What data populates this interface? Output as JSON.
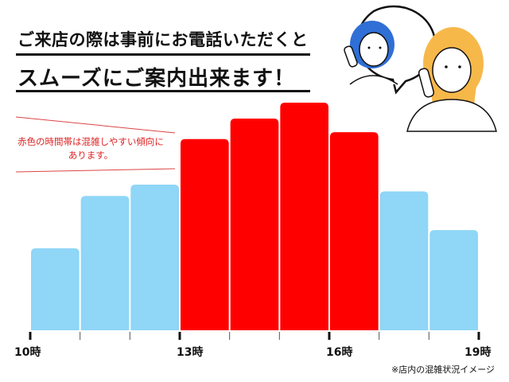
{
  "header": {
    "line1": "ご来店の際は事前にお電話いただくと",
    "line2": "スムーズにご案内出来ます！"
  },
  "note": {
    "line1": "赤色の時間帯は混雑しやすい傾向に",
    "line2": "あります。"
  },
  "footnote": "※店内の混雑状況イメージ",
  "illustration": "two women talking on phones (speech bubble)",
  "chart_data": {
    "type": "bar",
    "title": "",
    "xlabel": "",
    "ylabel": "",
    "x_range": [
      10,
      19
    ],
    "tick_labels": [
      {
        "hour": 10,
        "label": "10時"
      },
      {
        "hour": 13,
        "label": "13時"
      },
      {
        "hour": 16,
        "label": "16時"
      },
      {
        "hour": 19,
        "label": "19時"
      }
    ],
    "minor_ticks": [
      11,
      12,
      14,
      15,
      17,
      18
    ],
    "bars": [
      {
        "start": 10,
        "value": 36,
        "busy": false
      },
      {
        "start": 11,
        "value": 59,
        "busy": false
      },
      {
        "start": 12,
        "value": 64,
        "busy": false
      },
      {
        "start": 13,
        "value": 84,
        "busy": true
      },
      {
        "start": 14,
        "value": 93,
        "busy": true
      },
      {
        "start": 15,
        "value": 100,
        "busy": true
      },
      {
        "start": 16,
        "value": 87,
        "busy": true
      },
      {
        "start": 17,
        "value": 61,
        "busy": false
      },
      {
        "start": 18,
        "value": 44,
        "busy": false
      }
    ],
    "ylim": [
      0,
      100
    ],
    "grid": false,
    "colors": {
      "busy": "#ff0000",
      "normal": "#8fd6f7",
      "axis": "#111111"
    }
  }
}
